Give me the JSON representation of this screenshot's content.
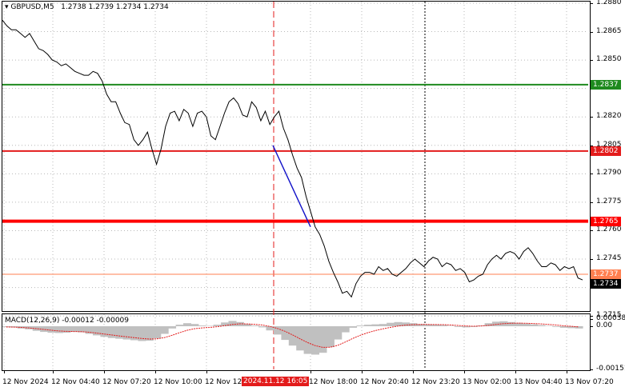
{
  "header": {
    "dropdown_icon": "triangle-down-icon",
    "symbol": "GBPUSD,M5",
    "ohlc": "1.2738 1.2739 1.2734 1.2734"
  },
  "price_axis": {
    "ticks": [
      "1.2880",
      "1.2865",
      "1.2850",
      "1.2835",
      "1.2820",
      "1.2805",
      "1.2790",
      "1.2775",
      "1.2760",
      "1.2745",
      "1.2730",
      "1.2715"
    ]
  },
  "levels": [
    {
      "label": "1.2837",
      "value": 1.2837,
      "color": "#1e8a1e"
    },
    {
      "label": "1.2802",
      "value": 1.2802,
      "color": "#e31b1b"
    },
    {
      "label": "1.2765",
      "value": 1.2765,
      "color": "#ff0000"
    },
    {
      "label": "1.2737",
      "value": 1.2737,
      "color": "#ff7f50"
    }
  ],
  "current_price": {
    "label": "1.2734",
    "value": 1.2734
  },
  "macd": {
    "title": "MACD(12,26,9) -0.00012 -0.00009",
    "ticks": [
      "0.00038",
      "0.00",
      "-0.00151"
    ]
  },
  "time_axis": {
    "labels": [
      "12 Nov 2024",
      "12 Nov 04:40",
      "12 Nov 07:20",
      "12 Nov 10:00",
      "12 Nov 12",
      "12 Nov 18:00",
      "12 Nov 20:40",
      "12 Nov 23:20",
      "13 Nov 02:00",
      "13 Nov 04:40",
      "13 Nov 07:20"
    ],
    "highlight": "2024.11.12 16:05"
  },
  "colors": {
    "price_line": "#000000",
    "trend_line": "#1010c8",
    "highlight_bg": "#e31b1b",
    "macd_hist": "#c0c0c0",
    "macd_signal": "#e31b1b"
  },
  "chart_data": {
    "type": "line",
    "ylim": [
      1.271,
      1.288
    ],
    "price": [
      1.2871,
      1.2868,
      1.2866,
      1.2866,
      1.2864,
      1.2862,
      1.2864,
      1.286,
      1.2856,
      1.2855,
      1.2853,
      1.285,
      1.2849,
      1.2847,
      1.2848,
      1.2846,
      1.2844,
      1.2843,
      1.2842,
      1.2842,
      1.2844,
      1.2843,
      1.2839,
      1.2832,
      1.2828,
      1.2828,
      1.2822,
      1.2817,
      1.2816,
      1.2808,
      1.2805,
      1.2808,
      1.2812,
      1.2803,
      1.2795,
      1.2803,
      1.2815,
      1.2822,
      1.2823,
      1.2818,
      1.2824,
      1.2822,
      1.2815,
      1.2822,
      1.2823,
      1.282,
      1.281,
      1.2808,
      1.2815,
      1.2822,
      1.2828,
      1.283,
      1.2827,
      1.2821,
      1.282,
      1.2828,
      1.2825,
      1.2818,
      1.2823,
      1.2816,
      1.282,
      1.2823,
      1.2814,
      1.2808,
      1.28,
      1.2793,
      1.2788,
      1.2778,
      1.277,
      1.2762,
      1.2758,
      1.2752,
      1.2744,
      1.2738,
      1.2733,
      1.2727,
      1.2728,
      1.2725,
      1.2732,
      1.2736,
      1.2738,
      1.2738,
      1.2737,
      1.2741,
      1.2739,
      1.274,
      1.2737,
      1.2736,
      1.2738,
      1.274,
      1.2743,
      1.2745,
      1.2743,
      1.2741,
      1.2744,
      1.2746,
      1.2745,
      1.2741,
      1.2743,
      1.2742,
      1.2739,
      1.274,
      1.2738,
      1.2733,
      1.2734,
      1.2736,
      1.2737,
      1.2742,
      1.2745,
      1.2747,
      1.2745,
      1.2748,
      1.2749,
      1.2748,
      1.2745,
      1.2749,
      1.2751,
      1.2748,
      1.2744,
      1.2741,
      1.2741,
      1.2743,
      1.2742,
      1.2739,
      1.2741,
      1.274,
      1.2741,
      1.2735,
      1.2734
    ],
    "trend_from": [
      1.2805,
      1.2762
    ],
    "macd_hist": [
      -4e-05,
      -6e-05,
      -0.00012,
      -0.00016,
      -0.00024,
      -0.0003,
      -0.00034,
      -0.00036,
      -0.00034,
      -0.0003,
      -0.00032,
      -0.0004,
      -0.00048,
      -0.00056,
      -0.00062,
      -0.00066,
      -0.0007,
      -0.00074,
      -0.00078,
      -0.00076,
      -0.00064,
      -0.0004,
      -0.00012,
      8e-05,
      0.00016,
      0.00012,
      4e-05,
      2e-05,
      8e-05,
      0.0002,
      0.00028,
      0.00022,
      0.00012,
      4e-05,
      -6e-05,
      -0.00022,
      -0.00044,
      -0.00072,
      -0.00102,
      -0.00128,
      -0.00146,
      -0.0015,
      -0.0014,
      -0.0011,
      -0.0007,
      -0.00032,
      -8e-05,
      4e-05,
      8e-05,
      0.0001,
      0.00012,
      0.00018,
      0.00022,
      0.0002,
      0.00016,
      0.00012,
      0.0001,
      8e-05,
      6e-05,
      2e-05,
      -4e-05,
      -6e-05,
      -4e-05,
      4e-05,
      0.00016,
      0.00024,
      0.00026,
      0.00022,
      0.00018,
      0.00014,
      0.0001,
      6e-05,
      2e-05,
      -4e-05,
      -8e-05,
      -0.0001,
      -0.00012
    ]
  }
}
